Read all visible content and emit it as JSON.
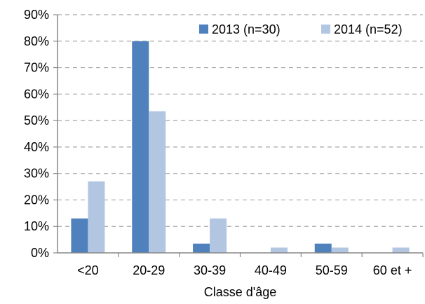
{
  "chart_data": {
    "type": "bar",
    "categories": [
      "<20",
      "20-29",
      "30-39",
      "40-49",
      "50-59",
      "60 et +"
    ],
    "series": [
      {
        "name": "2013 (n=30)",
        "color": "#4f81bd",
        "values": [
          13,
          80,
          3.5,
          0,
          3.5,
          0
        ]
      },
      {
        "name": "2014 (n=52)",
        "color": "#b3c6e1",
        "values": [
          27,
          53.5,
          13,
          2,
          2,
          2
        ]
      }
    ],
    "title": "",
    "xlabel": "Classe d'âge",
    "ylabel": "",
    "ylim": [
      0,
      90
    ],
    "yticks": [
      0,
      10,
      20,
      30,
      40,
      50,
      60,
      70,
      80,
      90
    ],
    "ytick_labels": [
      "0%",
      "10%",
      "20%",
      "30%",
      "40%",
      "50%",
      "60%",
      "70%",
      "80%",
      "90%"
    ],
    "grid": "horizontal-dashed",
    "legend_position": "top-right"
  }
}
